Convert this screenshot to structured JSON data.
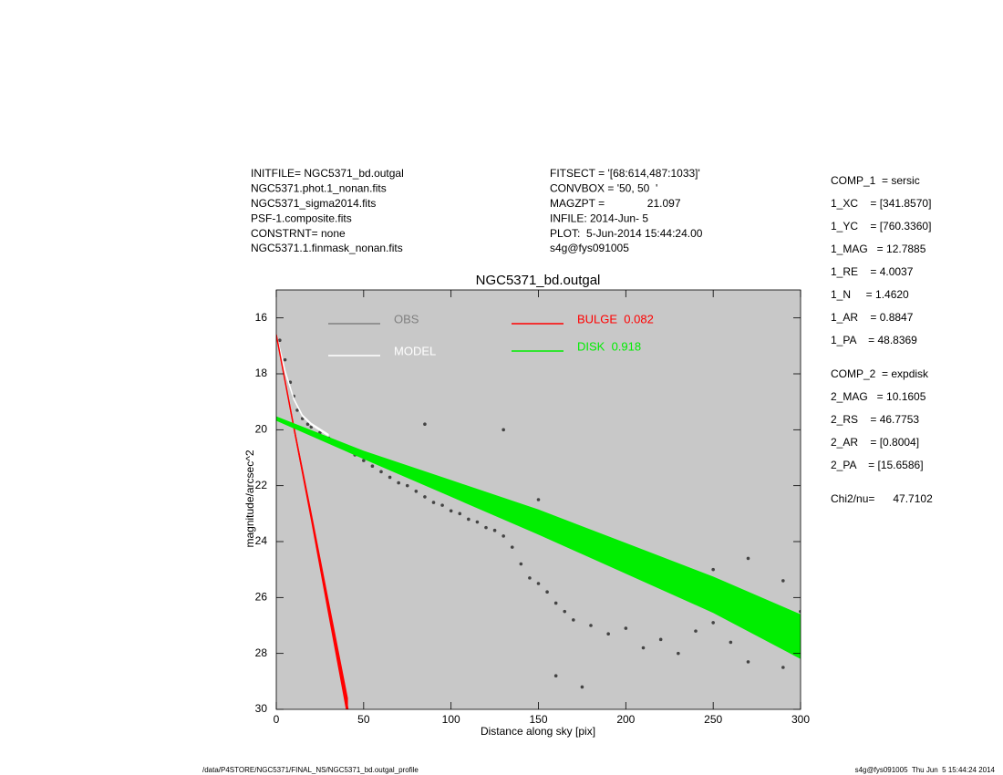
{
  "header_left": [
    "INITFILE= NGC5371_bd.outgal",
    "NGC5371.phot.1_nonan.fits",
    "NGC5371_sigma2014.fits",
    "PSF-1.composite.fits",
    "CONSTRNT= none",
    "NGC5371.1.finmask_nonan.fits"
  ],
  "header_middle": [
    "FITSECT = '[68:614,487:1033]'",
    "CONVBOX = '50, 50  '",
    "MAGZPT =              21.097",
    "INFILE: 2014-Jun- 5",
    "PLOT:  5-Jun-2014 15:44:24.00",
    "s4g@fys091005"
  ],
  "parameters": [
    [
      "COMP_1  = sersic",
      "1_XC    = [341.8570]",
      "1_YC    = [760.3360]",
      "1_MAG   = 12.7885",
      "1_RE    = 4.0037",
      "1_N     = 1.4620",
      "1_AR    = 0.8847",
      "1_PA    = 48.8369"
    ],
    [
      "COMP_2  = expdisk",
      "2_MAG   = 10.1605",
      "2_RS    = 46.7753",
      "2_AR    = [0.8004]",
      "2_PA    = [15.6586]"
    ],
    [
      "Chi2/nu=      47.7102"
    ]
  ],
  "footer_left": "/data/P4STORE/NGC5371/FINAL_NS/NGC5371_bd.outgal_profile",
  "footer_right": "s4g@fys091005  Thu Jun  5 15:44:24 2014",
  "chart_data": {
    "type": "scatter",
    "title": "NGC5371_bd.outgal",
    "xlabel": "Distance along sky [pix]",
    "ylabel": "magnitude/arcsec^2",
    "xlim": [
      0,
      300
    ],
    "ylim": [
      30,
      15
    ],
    "xticks": [
      0,
      50,
      100,
      150,
      200,
      250,
      300
    ],
    "yticks": [
      16,
      18,
      20,
      22,
      24,
      26,
      28,
      30
    ],
    "background": "#c8c8c8",
    "series": [
      {
        "name": "OBS",
        "color": "#808080",
        "point_color": "#444444",
        "mode": "points",
        "x": [
          2,
          5,
          8,
          10,
          12,
          15,
          18,
          20,
          25,
          30,
          35,
          40,
          45,
          50,
          55,
          60,
          65,
          70,
          75,
          80,
          85,
          90,
          95,
          100,
          105,
          110,
          115,
          120,
          125,
          130,
          135,
          140,
          145,
          150,
          155,
          160,
          165,
          170,
          180,
          190,
          200,
          210,
          220,
          230,
          240,
          250,
          260,
          270,
          280,
          290,
          300,
          85,
          130,
          150,
          160,
          175,
          250,
          270,
          290
        ],
        "values": [
          16.8,
          17.5,
          18.3,
          18.8,
          19.3,
          19.6,
          19.8,
          19.9,
          20.1,
          20.3,
          20.5,
          20.7,
          20.9,
          21.1,
          21.3,
          21.5,
          21.7,
          21.9,
          22.0,
          22.2,
          22.4,
          22.6,
          22.7,
          22.9,
          23.0,
          23.2,
          23.3,
          23.5,
          23.6,
          23.8,
          24.2,
          24.8,
          25.3,
          25.5,
          25.8,
          26.2,
          26.5,
          26.8,
          27.0,
          27.3,
          27.1,
          27.8,
          27.5,
          28.0,
          27.2,
          26.9,
          27.6,
          28.3,
          27.0,
          28.5,
          26.5,
          19.8,
          20.0,
          22.5,
          28.8,
          29.2,
          25.0,
          24.6,
          25.4
        ]
      },
      {
        "name": "MODEL",
        "color": "#ffffff",
        "mode": "band",
        "x": [
          0,
          5,
          10,
          15,
          20,
          25,
          30
        ],
        "values": [
          16.6,
          17.9,
          18.9,
          19.5,
          19.8,
          20.0,
          20.2
        ],
        "spread": [
          0.05,
          0.05,
          0.05,
          0.05,
          0.05,
          0.05,
          0.05
        ]
      },
      {
        "name": "BULGE  0.082",
        "color": "#ff0000",
        "mode": "band",
        "x": [
          0,
          10,
          20,
          30,
          41
        ],
        "values": [
          16.6,
          19.9,
          23.1,
          26.4,
          30.0
        ],
        "spread": [
          0.05,
          0.12,
          0.2,
          0.3,
          0.4
        ]
      },
      {
        "name": "DISK  0.918",
        "color": "#00ee00",
        "mode": "band",
        "x": [
          0,
          50,
          100,
          150,
          200,
          250,
          300
        ],
        "values": [
          19.6,
          20.9,
          22.1,
          23.3,
          24.6,
          25.9,
          27.4
        ],
        "spread": [
          0.08,
          0.15,
          0.3,
          0.45,
          0.55,
          0.65,
          0.8
        ]
      }
    ]
  }
}
